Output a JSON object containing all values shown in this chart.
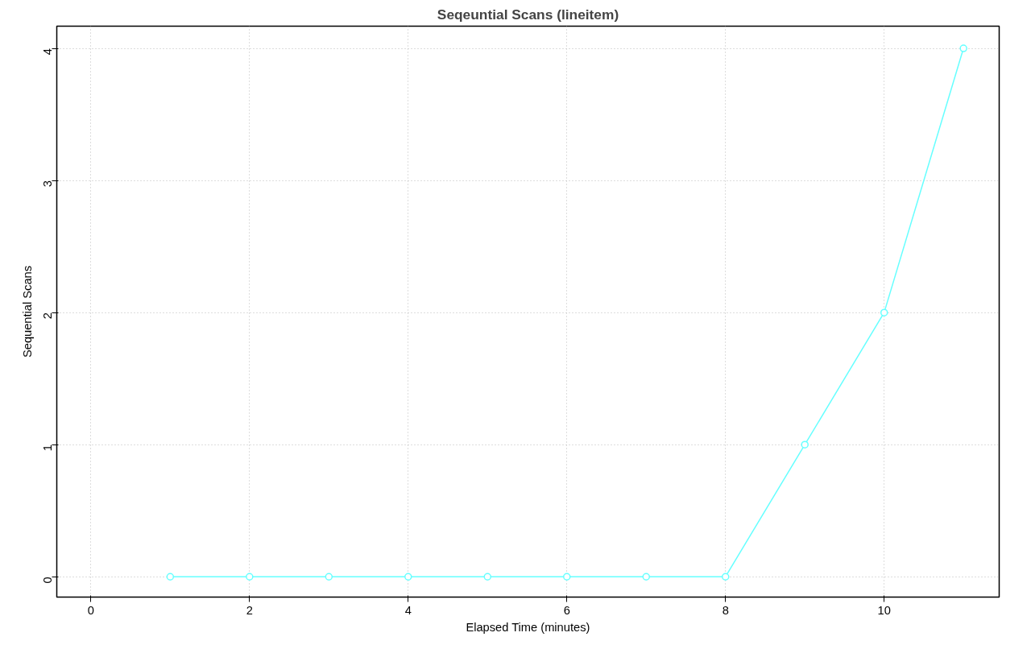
{
  "chart_data": {
    "type": "line",
    "title": "Seqeuntial Scans (lineitem)",
    "xlabel": "Elapsed Time (minutes)",
    "ylabel": "Sequential Scans",
    "x": [
      1,
      2,
      3,
      4,
      5,
      6,
      7,
      8,
      9,
      10,
      11
    ],
    "series": [
      {
        "color": "#66ffff",
        "values": [
          0,
          0,
          0,
          0,
          0,
          0,
          0,
          0,
          1,
          2,
          4
        ]
      }
    ],
    "xlim": [
      -0.43,
      11.45
    ],
    "xticks": [
      0,
      2,
      4,
      6,
      8,
      10
    ],
    "ylim": [
      -0.154,
      4.168
    ],
    "yticks": [
      0,
      1,
      2,
      3,
      4
    ],
    "grid": true,
    "marker": "circle",
    "line_style": "solid"
  }
}
